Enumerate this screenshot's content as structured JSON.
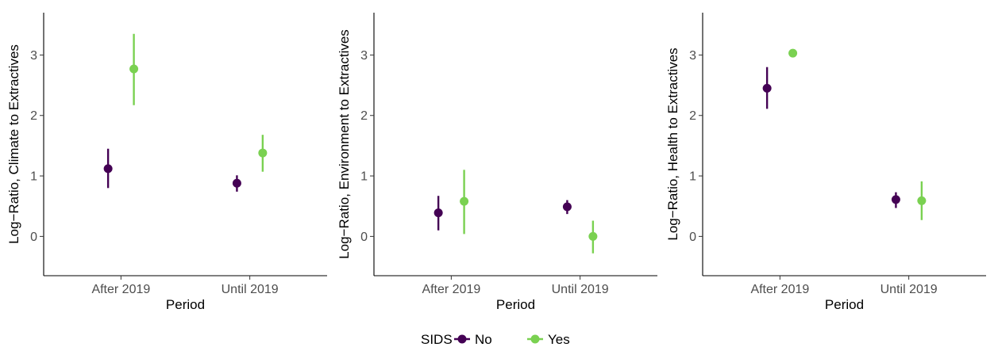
{
  "chart_data": [
    {
      "type": "scatter",
      "title": "",
      "xlabel": "Period",
      "ylabel": "Log−Ratio, Climate to Extractives",
      "categories": [
        "After 2019",
        "Until 2019"
      ],
      "yticks": [
        "0",
        "1",
        "2",
        "3"
      ],
      "ylim": [
        -0.65,
        3.7
      ],
      "series": [
        {
          "name": "No",
          "estimates": [
            1.12,
            0.88
          ],
          "lower": [
            0.8,
            0.74
          ],
          "upper": [
            1.45,
            1.01
          ]
        },
        {
          "name": "Yes",
          "estimates": [
            2.77,
            1.38
          ],
          "lower": [
            2.17,
            1.07
          ],
          "upper": [
            3.35,
            1.68
          ]
        }
      ]
    },
    {
      "type": "scatter",
      "title": "",
      "xlabel": "Period",
      "ylabel": "Log−Ratio, Environment to Extractives",
      "categories": [
        "After 2019",
        "Until 2019"
      ],
      "yticks": [
        "0",
        "1",
        "2",
        "3"
      ],
      "ylim": [
        -0.65,
        3.7
      ],
      "series": [
        {
          "name": "No",
          "estimates": [
            0.39,
            0.49
          ],
          "lower": [
            0.1,
            0.37
          ],
          "upper": [
            0.67,
            0.6
          ]
        },
        {
          "name": "Yes",
          "estimates": [
            0.58,
            0.0
          ],
          "lower": [
            0.04,
            -0.28
          ],
          "upper": [
            1.1,
            0.26
          ]
        }
      ]
    },
    {
      "type": "scatter",
      "title": "",
      "xlabel": "Period",
      "ylabel": "Log−Ratio, Health to Extractives",
      "categories": [
        "After 2019",
        "Until 2019"
      ],
      "yticks": [
        "0",
        "1",
        "2",
        "3"
      ],
      "ylim": [
        -0.65,
        3.7
      ],
      "series": [
        {
          "name": "No",
          "estimates": [
            2.45,
            0.61
          ],
          "lower": [
            2.11,
            0.47
          ],
          "upper": [
            2.8,
            0.73
          ]
        },
        {
          "name": "Yes",
          "estimates": [
            3.03,
            0.59
          ],
          "lower": [
            3.03,
            0.27
          ],
          "upper": [
            3.03,
            0.91
          ]
        }
      ]
    }
  ],
  "legend": {
    "title": "SIDS",
    "items": [
      {
        "label": "No",
        "color": "#440154"
      },
      {
        "label": "Yes",
        "color": "#7AD151"
      }
    ]
  }
}
